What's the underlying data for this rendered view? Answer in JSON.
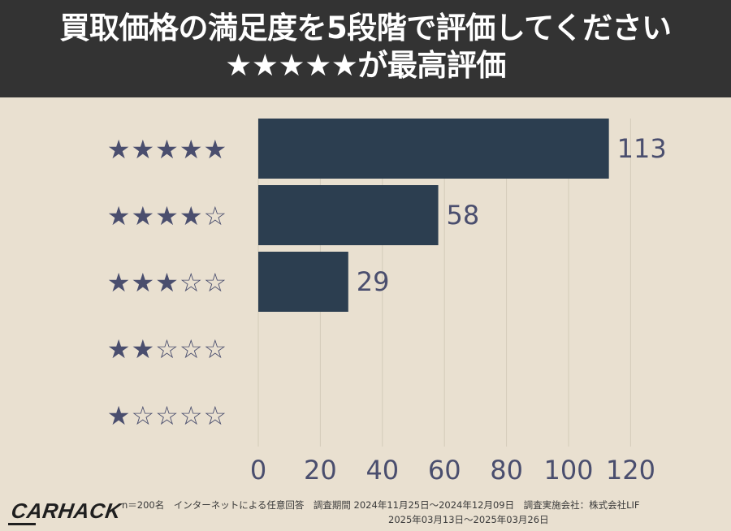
{
  "header": {
    "title_line1": "買取価格の満足度を5段階で評価してください",
    "title_line2": "★★★★★が最高評価"
  },
  "chart_data": {
    "type": "bar",
    "orientation": "horizontal",
    "categories": [
      "★★★★★",
      "★★★★☆",
      "★★★☆☆",
      "★★☆☆☆",
      "★☆☆☆☆"
    ],
    "values": [
      113,
      58,
      29,
      0,
      0
    ],
    "data_labels": [
      "113",
      "58",
      "29",
      "",
      ""
    ],
    "xlim": [
      0,
      120
    ],
    "xticks": [
      0,
      20,
      40,
      60,
      80,
      100,
      120
    ],
    "grid": true,
    "bar_color": "#2c3e50",
    "star_color": "#4a4e6e",
    "tick_color": "#4a4e6e",
    "label_color": "#4a4e6e"
  },
  "footer": {
    "logo": "CARHACK",
    "meta_line1": "n＝200名　インターネットによる任意回答　調査期間 2024年11月25日〜2024年12月09日　調査実施会社：株式会社LIF",
    "meta_line2": "2025年03月13日〜2025年03月26日"
  }
}
